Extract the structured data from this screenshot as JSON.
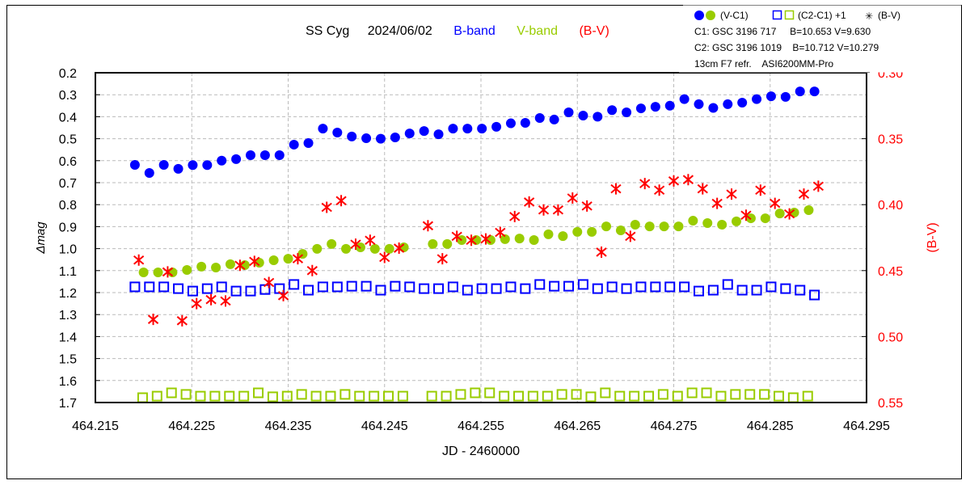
{
  "chart_data": {
    "type": "scatter",
    "title": {
      "object": "SS Cyg",
      "date": "2024/06/02",
      "b_band": "B-band",
      "v_band": "V-band",
      "bv": "(B-V)"
    },
    "xlabel": "JD - 2460000",
    "ylabel": "Δmag",
    "y2label": "(B-V)",
    "xlim": [
      464.215,
      464.295
    ],
    "ylim": [
      0.2,
      1.7
    ],
    "y_inverted": true,
    "y2lim": [
      0.3,
      0.55
    ],
    "y2_inverted": true,
    "grid": true,
    "x_ticks": [
      "464.215",
      "464.225",
      "464.235",
      "464.245",
      "464.255",
      "464.265",
      "464.275",
      "464.285",
      "464.295"
    ],
    "y_ticks": [
      "0.2",
      "0.3",
      "0.4",
      "0.5",
      "0.6",
      "0.7",
      "0.8",
      "0.9",
      "1.0",
      "1.1",
      "1.2",
      "1.3",
      "1.4",
      "1.5",
      "1.6",
      "1.7"
    ],
    "y2_ticks": [
      "0.30",
      "0.35",
      "0.40",
      "0.45",
      "0.50",
      "0.55"
    ],
    "legend": {
      "placement": "top-right",
      "entries": [
        "(V-C1)",
        "(C2-C1) +1",
        "(B-V)"
      ],
      "info": [
        "C1: GSC 3196 717     B=10.653 V=9.630",
        "C2: GSC 3196 1019    B=10.712 V=10.279",
        "13cm F7 refr.    ASI6200MM-Pro"
      ]
    },
    "colors": {
      "blue": "#0000ff",
      "green": "#99cc00",
      "red": "#ff0000"
    },
    "series": [
      {
        "name": "B-band (V-C1)",
        "marker": "filled-circle",
        "color": "#0000ff",
        "axis": "left",
        "x": [
          464.2191,
          464.2206,
          464.2221,
          464.2236,
          464.2251,
          464.2266,
          464.2281,
          464.2296,
          464.2311,
          464.2326,
          464.2341,
          464.2356,
          464.2371,
          464.2386,
          464.2401,
          464.2416,
          464.2431,
          464.2446,
          464.2461,
          464.2476,
          464.2491,
          464.2506,
          464.2521,
          464.2536,
          464.2551,
          464.2566,
          464.2581,
          464.2596,
          464.2611,
          464.2626,
          464.2641,
          464.2656,
          464.2671,
          464.2686,
          464.2701,
          464.2716,
          464.2731,
          464.2746,
          464.2761,
          464.2776,
          464.2791,
          464.2806,
          464.2821,
          464.2836,
          464.2851,
          464.2866,
          464.2881,
          464.2896
        ],
        "y": [
          0.619,
          0.656,
          0.619,
          0.637,
          0.62,
          0.62,
          0.6,
          0.593,
          0.575,
          0.575,
          0.575,
          0.527,
          0.52,
          0.454,
          0.472,
          0.49,
          0.498,
          0.5,
          0.494,
          0.476,
          0.465,
          0.48,
          0.454,
          0.454,
          0.454,
          0.446,
          0.43,
          0.428,
          0.406,
          0.413,
          0.38,
          0.395,
          0.4,
          0.37,
          0.38,
          0.362,
          0.355,
          0.35,
          0.32,
          0.343,
          0.36,
          0.343,
          0.336,
          0.32,
          0.307,
          0.31,
          0.285,
          0.285
        ]
      },
      {
        "name": "V-band (V-C1)",
        "marker": "filled-circle",
        "color": "#99cc00",
        "axis": "left",
        "x": [
          464.22,
          464.2215,
          464.223,
          464.2245,
          464.226,
          464.2275,
          464.229,
          464.2305,
          464.232,
          464.2335,
          464.235,
          464.2365,
          464.238,
          464.2395,
          464.241,
          464.2425,
          464.244,
          464.2455,
          464.247,
          464.25,
          464.2515,
          464.253,
          464.2545,
          464.256,
          464.2575,
          464.259,
          464.2605,
          464.262,
          464.2635,
          464.265,
          464.2665,
          464.268,
          464.2695,
          464.271,
          464.2725,
          464.274,
          464.2755,
          464.277,
          464.2785,
          464.28,
          464.2815,
          464.283,
          464.2845,
          464.286,
          464.2875,
          464.289
        ],
        "y": [
          1.108,
          1.108,
          1.108,
          1.097,
          1.082,
          1.086,
          1.071,
          1.075,
          1.064,
          1.053,
          1.046,
          1.024,
          1.001,
          0.979,
          1.001,
          0.994,
          1.001,
          1.001,
          0.994,
          0.979,
          0.979,
          0.961,
          0.961,
          0.961,
          0.957,
          0.954,
          0.961,
          0.935,
          0.943,
          0.924,
          0.924,
          0.899,
          0.917,
          0.891,
          0.899,
          0.899,
          0.899,
          0.873,
          0.884,
          0.891,
          0.876,
          0.862,
          0.862,
          0.84,
          0.836,
          0.825
        ]
      },
      {
        "name": "B-band (C2-C1)+1",
        "marker": "open-square",
        "color": "#0000ff",
        "axis": "left",
        "x": [
          464.2191,
          464.2206,
          464.2221,
          464.2236,
          464.2251,
          464.2266,
          464.2281,
          464.2296,
          464.2311,
          464.2326,
          464.2341,
          464.2356,
          464.2371,
          464.2386,
          464.2401,
          464.2416,
          464.2431,
          464.2446,
          464.2461,
          464.2476,
          464.2491,
          464.2506,
          464.2521,
          464.2536,
          464.2551,
          464.2566,
          464.2581,
          464.2596,
          464.2611,
          464.2626,
          464.2641,
          464.2656,
          464.2671,
          464.2686,
          464.2701,
          464.2716,
          464.2731,
          464.2746,
          464.2761,
          464.2776,
          464.2791,
          464.2806,
          464.2821,
          464.2836,
          464.2851,
          464.2866,
          464.2881,
          464.2896
        ],
        "y": [
          1.174,
          1.174,
          1.174,
          1.182,
          1.193,
          1.182,
          1.174,
          1.193,
          1.193,
          1.186,
          1.182,
          1.163,
          1.189,
          1.174,
          1.174,
          1.171,
          1.171,
          1.189,
          1.171,
          1.174,
          1.182,
          1.182,
          1.174,
          1.189,
          1.182,
          1.182,
          1.174,
          1.182,
          1.163,
          1.171,
          1.171,
          1.163,
          1.182,
          1.174,
          1.182,
          1.174,
          1.174,
          1.174,
          1.174,
          1.193,
          1.189,
          1.163,
          1.189,
          1.189,
          1.174,
          1.182,
          1.189,
          1.211
        ]
      },
      {
        "name": "V-band (C2-C1)+1",
        "marker": "open-square",
        "color": "#99cc00",
        "axis": "left",
        "x": [
          464.2199,
          464.2214,
          464.2229,
          464.2244,
          464.2259,
          464.2274,
          464.2289,
          464.2304,
          464.2319,
          464.2334,
          464.2349,
          464.2364,
          464.2379,
          464.2394,
          464.2409,
          464.2424,
          464.2439,
          464.2454,
          464.2469,
          464.2499,
          464.2514,
          464.2529,
          464.2544,
          464.2559,
          464.2574,
          464.2589,
          464.2604,
          464.2619,
          464.2634,
          464.2649,
          464.2664,
          464.2679,
          464.2694,
          464.2709,
          464.2724,
          464.2739,
          464.2754,
          464.2769,
          464.2784,
          464.2799,
          464.2814,
          464.2829,
          464.2844,
          464.2859,
          464.2874,
          464.2889
        ],
        "y": [
          1.678,
          1.671,
          1.656,
          1.663,
          1.671,
          1.671,
          1.671,
          1.671,
          1.656,
          1.674,
          1.671,
          1.663,
          1.671,
          1.671,
          1.663,
          1.671,
          1.671,
          1.671,
          1.671,
          1.671,
          1.671,
          1.663,
          1.656,
          1.656,
          1.671,
          1.671,
          1.671,
          1.671,
          1.663,
          1.663,
          1.674,
          1.656,
          1.671,
          1.671,
          1.671,
          1.663,
          1.671,
          1.656,
          1.656,
          1.671,
          1.663,
          1.663,
          1.663,
          1.671,
          1.678,
          1.671
        ]
      },
      {
        "name": "(B-V)",
        "marker": "asterisk",
        "color": "#ff0000",
        "axis": "right",
        "x": [
          464.2195,
          464.221,
          464.2225,
          464.224,
          464.2255,
          464.227,
          464.2285,
          464.23,
          464.2315,
          464.233,
          464.2345,
          464.236,
          464.2375,
          464.239,
          464.2405,
          464.242,
          464.2435,
          464.245,
          464.2465,
          464.2495,
          464.251,
          464.2525,
          464.254,
          464.2555,
          464.257,
          464.2585,
          464.26,
          464.2615,
          464.263,
          464.2645,
          464.266,
          464.2675,
          464.269,
          464.2705,
          464.272,
          464.2735,
          464.275,
          464.2765,
          464.278,
          464.2795,
          464.281,
          464.2825,
          464.284,
          464.2855,
          464.287,
          464.2885,
          464.29
        ],
        "y": [
          0.442,
          0.487,
          0.451,
          0.488,
          0.475,
          0.472,
          0.473,
          0.446,
          0.443,
          0.459,
          0.469,
          0.441,
          0.45,
          0.402,
          0.397,
          0.43,
          0.427,
          0.44,
          0.433,
          0.416,
          0.441,
          0.424,
          0.427,
          0.426,
          0.421,
          0.409,
          0.398,
          0.404,
          0.404,
          0.395,
          0.401,
          0.436,
          0.388,
          0.424,
          0.384,
          0.389,
          0.382,
          0.381,
          0.388,
          0.399,
          0.392,
          0.408,
          0.389,
          0.399,
          0.407,
          0.392,
          0.386
        ]
      }
    ]
  }
}
